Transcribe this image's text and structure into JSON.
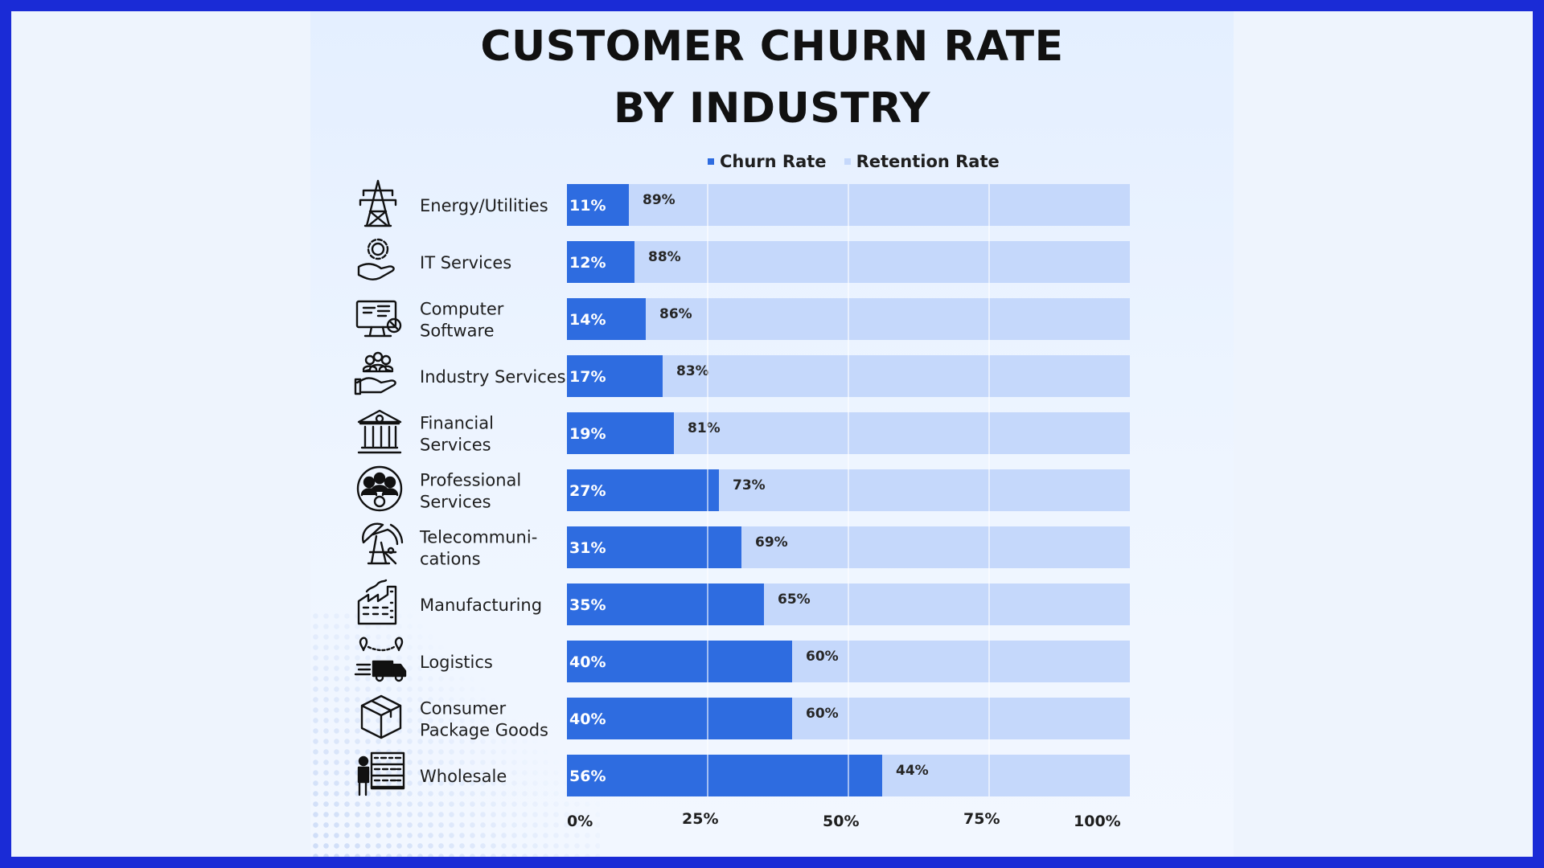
{
  "title_lines": [
    "CUSTOMER CHURN RATE",
    "BY INDUSTRY"
  ],
  "colors": {
    "churn": "#2e6ce0",
    "retention": "#c5d8fb",
    "gridline": "#ffffff"
  },
  "chart_data": {
    "type": "bar",
    "orientation": "horizontal",
    "stacked": true,
    "title": "CUSTOMER CHURN RATE BY INDUSTRY",
    "categories": [
      [
        "Energy/Utilities"
      ],
      [
        "IT Services"
      ],
      [
        "Computer",
        "Software"
      ],
      [
        "Industry Services"
      ],
      [
        "Financial",
        "Services"
      ],
      [
        "Professional",
        "Services"
      ],
      [
        "Telecommuni-",
        "cations"
      ],
      [
        "Manufacturing"
      ],
      [
        "Logistics"
      ],
      [
        "Consumer",
        "Package Goods"
      ],
      [
        "Wholesale"
      ]
    ],
    "icons": [
      "power-tower-icon",
      "gear-hand-icon",
      "computer-wrench-icon",
      "people-hand-icon",
      "bank-icon",
      "team-gear-icon",
      "satellite-dish-icon",
      "factory-icon",
      "delivery-truck-icon",
      "package-box-icon",
      "warehouse-worker-icon"
    ],
    "series": [
      {
        "name": "Churn Rate",
        "values": [
          11,
          12,
          14,
          17,
          19,
          27,
          31,
          35,
          40,
          40,
          56
        ],
        "labels": [
          "11%",
          "12%",
          "14%",
          "17%",
          "19%",
          "27%",
          "31%",
          "35%",
          "40%",
          "40%",
          "56%"
        ]
      },
      {
        "name": "Retention Rate",
        "values": [
          89,
          88,
          86,
          83,
          81,
          73,
          69,
          65,
          60,
          60,
          44
        ],
        "labels": [
          "89%",
          "88%",
          "86%",
          "83%",
          "81%",
          "73%",
          "69%",
          "65%",
          "60%",
          "60%",
          "44%"
        ]
      }
    ],
    "xlim": [
      0,
      100
    ],
    "xticks": [
      0,
      25,
      50,
      75,
      100
    ],
    "xtick_labels": [
      "0%",
      "25%",
      "50%",
      "75%",
      "100%"
    ],
    "legend": "top-center",
    "grid": true
  }
}
